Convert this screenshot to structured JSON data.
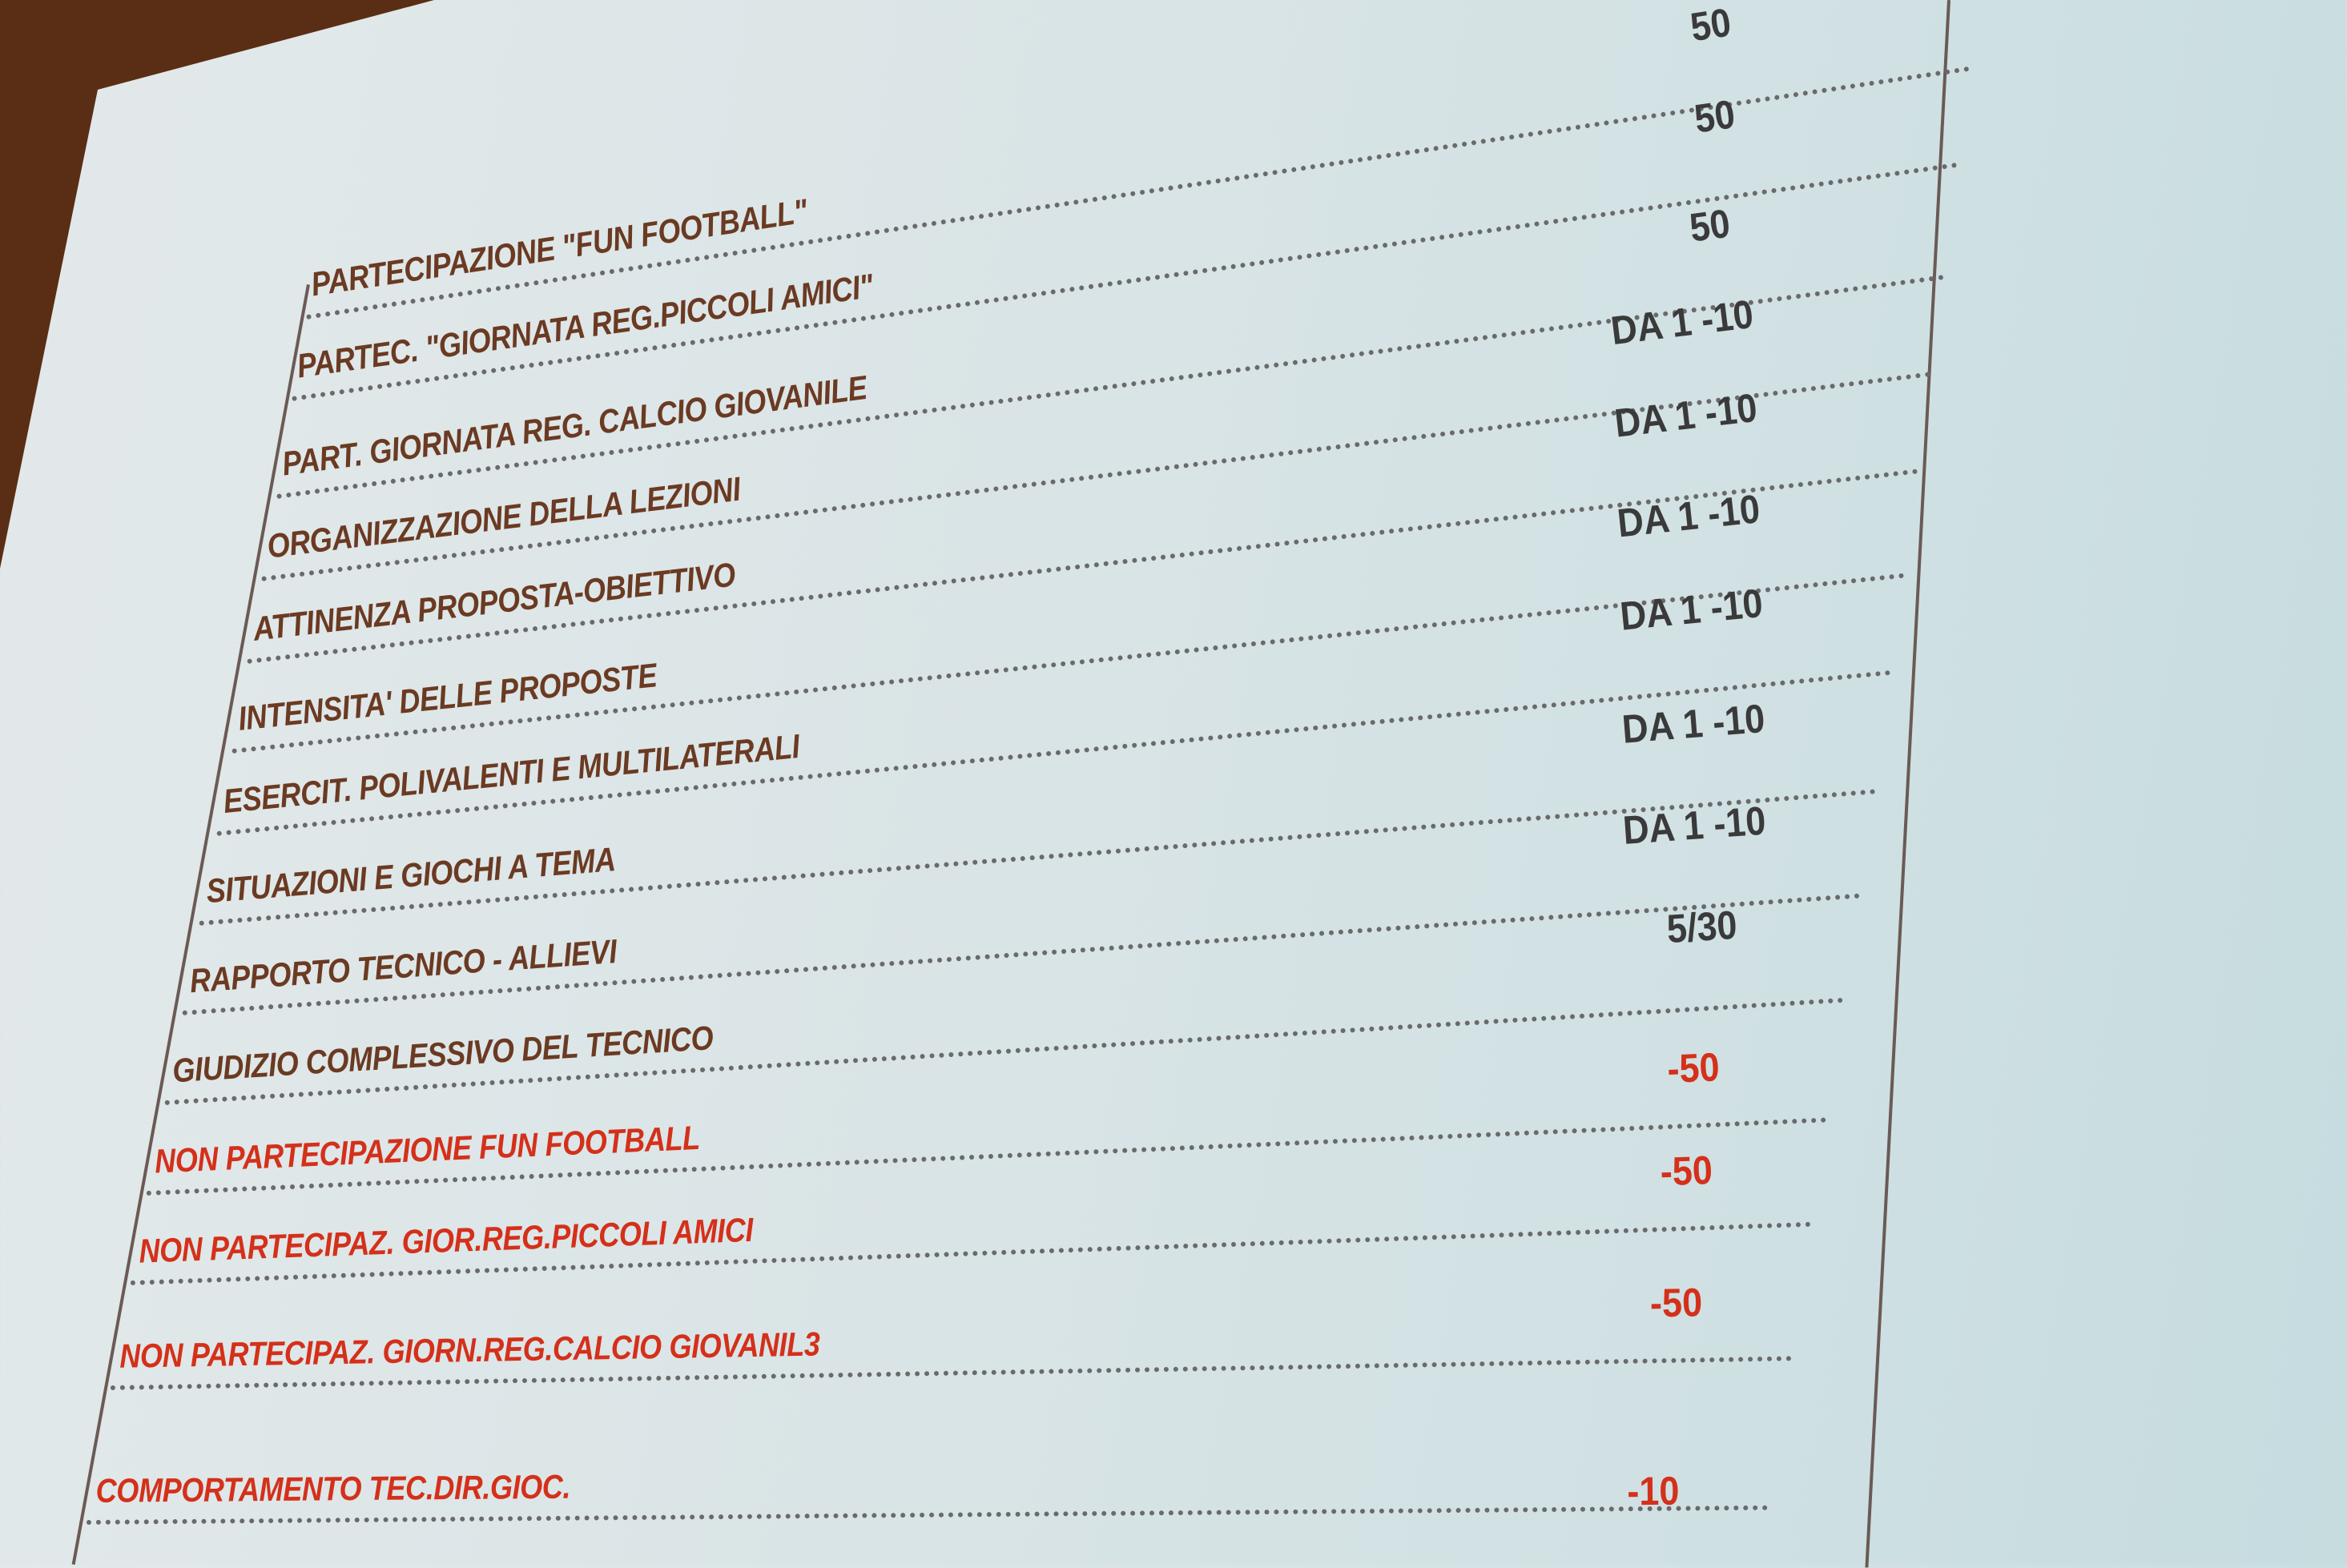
{
  "colors": {
    "label": "#6b3a22",
    "penalty": "#d4301a",
    "value": "#3a3a3a",
    "screen": "#dbe6e8",
    "wall": "#5a2e14"
  },
  "rows": [
    {
      "label": "PARTECIPAZIONE \"FUN FOOTBALL\"",
      "value": "50"
    },
    {
      "label": "PARTEC. \"GIORNATA REG.PICCOLI AMICI\"",
      "value": "50"
    },
    {
      "label": "PART. GIORNATA REG. CALCIO GIOVANILE",
      "value": "50"
    },
    {
      "label": "ORGANIZZAZIONE DELLA LEZIONI",
      "value": "DA 1 -10"
    },
    {
      "label": "ATTINENZA PROPOSTA-OBIETTIVO",
      "value": "DA 1 -10"
    },
    {
      "label": "INTENSITA' DELLE PROPOSTE",
      "value": "DA 1 -10"
    },
    {
      "label": "ESERCIT. POLIVALENTI E MULTILATERALI",
      "value": "DA 1 -10"
    },
    {
      "label": "SITUAZIONI E GIOCHI A TEMA",
      "value": "DA 1 -10"
    },
    {
      "label": "RAPPORTO TECNICO - ALLIEVI",
      "value": "DA 1 -10"
    },
    {
      "label": "GIUDIZIO COMPLESSIVO DEL TECNICO",
      "value": "5/30"
    },
    {
      "label": "NON PARTECIPAZIONE FUN FOOTBALL",
      "value": "-50"
    },
    {
      "label": "NON PARTECIPAZ. GIOR.REG.PICCOLI AMICI",
      "value": "-50"
    },
    {
      "label": "NON PARTECIPAZ. GIORN.REG.CALCIO GIOVANIL3",
      "value": "-50"
    },
    {
      "label": "COMPORTAMENTO TEC.DIR.GIOC.",
      "value": "-10"
    }
  ]
}
